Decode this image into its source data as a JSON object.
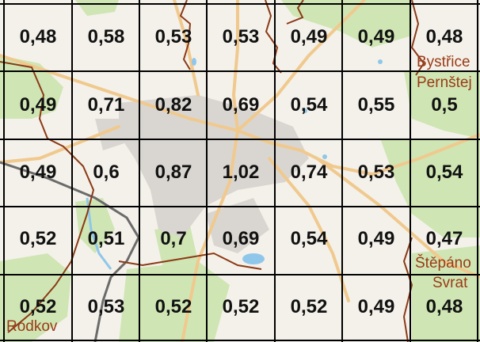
{
  "grid": {
    "values": [
      [
        "0,48",
        "0,58",
        "0,53",
        "0,53",
        "0,49",
        "0,49",
        "0,48"
      ],
      [
        "0,49",
        "0,71",
        "0,82",
        "0,69",
        "0,54",
        "0,55",
        "0,5"
      ],
      [
        "0,49",
        "0,6",
        "0,87",
        "1,02",
        "0,74",
        "0,53",
        "0,54"
      ],
      [
        "0,52",
        "0,51",
        "0,7",
        "0,69",
        "0,54",
        "0,49",
        "0,47"
      ],
      [
        "0,52",
        "0,53",
        "0,52",
        "0,52",
        "0,52",
        "0,49",
        "0,48"
      ]
    ]
  },
  "places": {
    "bystrice": "Bystřice",
    "pernstejn": "Pernštej",
    "stepanov": "Štěpáno",
    "svratka": "Svrat",
    "rodkov": "Rodkov"
  },
  "colors": {
    "background": "#f4f1ea",
    "forest": "#cfe6b4",
    "urban": "#d9d6d1",
    "road": "#f0c98e",
    "boundary": "#8b3a16",
    "grid_line": "#000000",
    "water": "#8fc7ea",
    "railway": "#6b6b6b"
  }
}
